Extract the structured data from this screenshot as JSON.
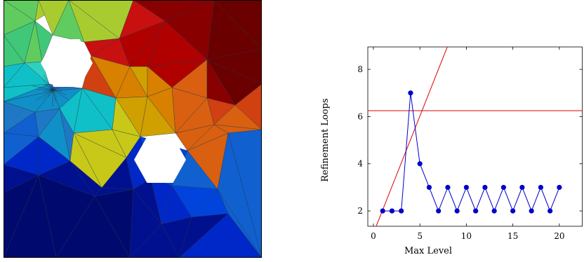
{
  "mesh": {
    "colors": {
      "dark_navy": "#000a6e",
      "navy": "#00108f",
      "blue": "#0028c8",
      "bright_blue": "#0044dd",
      "medium_blue": "#1060d0",
      "steel_blue": "#1f78c6",
      "teal": "#1090c8",
      "cyan": "#10c0c8",
      "light_cyan": "#30d0c0",
      "green": "#40c878",
      "light_green": "#60cc60",
      "yellow_green": "#a8cc30",
      "yellow": "#c8c818",
      "gold": "#d0a000",
      "orange": "#d88000",
      "dark_orange": "#d86010",
      "red_orange": "#d04010",
      "red": "#c81010",
      "crimson": "#b00000",
      "dark_red": "#880000",
      "maroon": "#6a0000",
      "edge": "#203040"
    }
  },
  "chart_data": {
    "type": "line",
    "xlabel": "Max Level",
    "ylabel": "Refinement Loops",
    "xlim": [
      -0.6,
      22.5
    ],
    "ylim": [
      1.35,
      8.95
    ],
    "xticks": [
      0,
      5,
      10,
      15,
      20
    ],
    "yticks": [
      2,
      4,
      6,
      8
    ],
    "grid": false,
    "series": [
      {
        "color": "#0000cc",
        "marker": "circle",
        "x": [
          1,
          2,
          3,
          4,
          5,
          6,
          7,
          8,
          9,
          10,
          11,
          12,
          13,
          14,
          15,
          16,
          17,
          18,
          19,
          20
        ],
        "y": [
          2,
          2,
          2,
          7,
          4,
          3,
          2,
          3,
          2,
          3,
          2,
          3,
          2,
          3,
          2,
          3,
          2,
          3,
          2,
          3
        ]
      }
    ],
    "reference_lines": [
      {
        "color": "#dd0000",
        "kind": "horizontal",
        "y": 6.25
      },
      {
        "color": "#dd0000",
        "kind": "line",
        "x": [
          0.2,
          8.1
        ],
        "y": [
          1.25,
          9.1
        ]
      }
    ]
  }
}
